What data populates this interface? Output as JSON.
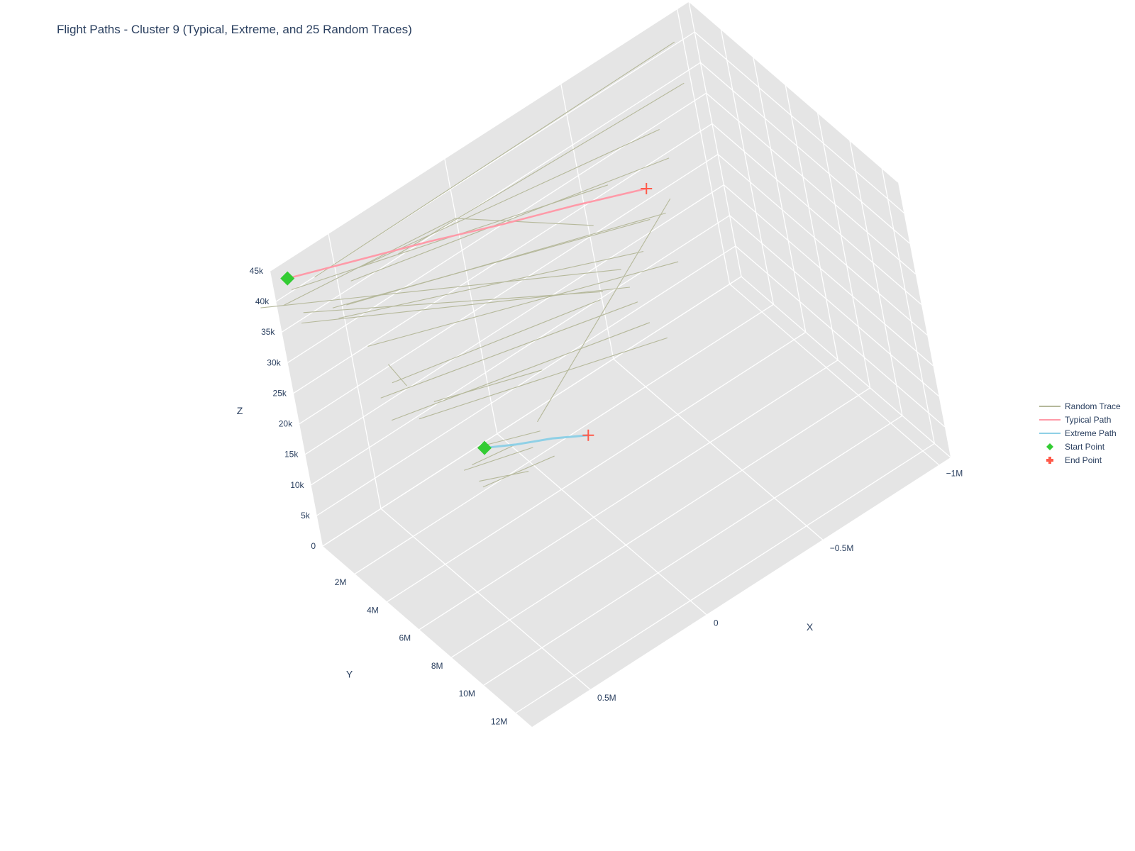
{
  "chart_data": {
    "type": "line3d",
    "title": "Flight Paths - Cluster 9 (Typical, Extreme, and 25 Random Traces)",
    "axes": {
      "x": {
        "title": "X",
        "range": [
          -1.05,
          0.75
        ],
        "ticks": [
          -1,
          -0.5,
          0,
          0.5
        ],
        "tick_labels": [
          "−1M",
          "−0.5M",
          "0",
          "0.5M"
        ]
      },
      "y": {
        "title": "Y",
        "range": [
          0,
          13
        ],
        "ticks": [
          0,
          2,
          4,
          6,
          8,
          10,
          12
        ],
        "tick_labels": [
          "0",
          "2M",
          "4M",
          "6M",
          "8M",
          "10M",
          "12M"
        ]
      },
      "z": {
        "title": "Z",
        "range": [
          0,
          45000
        ],
        "ticks": [
          0,
          5000,
          10000,
          15000,
          20000,
          25000,
          30000,
          35000,
          40000,
          45000
        ],
        "tick_labels": [
          "0",
          "5k",
          "10k",
          "15k",
          "20k",
          "25k",
          "30k",
          "35k",
          "40k",
          "45k"
        ]
      }
    },
    "grid": true,
    "legend_position": "right",
    "colors": {
      "random": "#b5b89a",
      "typical": "#ff9aa8",
      "extreme": "#8fd0e6",
      "start": "#33cc33",
      "end": "#ff5a4a",
      "pane": "#e5e5e5",
      "gridline": "#ffffff"
    },
    "legend": [
      {
        "name": "Random Trace",
        "kind": "line",
        "color": "#b5b89a"
      },
      {
        "name": "Typical Path",
        "kind": "line",
        "color": "#ff9aa8"
      },
      {
        "name": "Extreme Path",
        "kind": "line",
        "color": "#8fd0e6"
      },
      {
        "name": "Start Point",
        "kind": "diamond",
        "color": "#33cc33"
      },
      {
        "name": "End Point",
        "kind": "cross",
        "color": "#ff5a4a"
      }
    ],
    "typical_path": [
      [
        0.7,
        0.2,
        43000
      ],
      [
        0.45,
        0.9,
        41500
      ],
      [
        0.2,
        1.6,
        40000
      ],
      [
        -0.05,
        2.4,
        38500
      ],
      [
        -0.3,
        3.1,
        37000
      ],
      [
        -0.55,
        3.9,
        35500
      ]
    ],
    "extreme_path": [
      [
        0.45,
        7.6,
        26000
      ],
      [
        0.35,
        8.0,
        25000
      ],
      [
        0.22,
        8.3,
        23500
      ],
      [
        0.1,
        8.7,
        22000
      ]
    ],
    "start_points": [
      [
        0.7,
        0.2,
        43000
      ],
      [
        0.45,
        7.6,
        26000
      ]
    ],
    "end_points": [
      [
        -0.55,
        3.9,
        35500
      ],
      [
        0.1,
        8.7,
        22000
      ]
    ],
    "random_traces": [
      [
        [
          0.85,
          0.7,
          43000
        ],
        [
          -0.25,
          6.7,
          36000
        ]
      ],
      [
        [
          0.7,
          0.35,
          41500
        ],
        [
          -0.4,
          4.0,
          40000
        ]
      ],
      [
        [
          0.75,
          0.5,
          40500
        ],
        [
          0.1,
          1.9,
          42000
        ],
        [
          -0.3,
          4.3,
          36500
        ]
      ],
      [
        [
          0.7,
          0.9,
          39000
        ],
        [
          -0.2,
          6.0,
          32000
        ]
      ],
      [
        [
          0.72,
          1.0,
          38000
        ],
        [
          -0.25,
          7.1,
          34000
        ]
      ],
      [
        [
          0.6,
          0.3,
          41000
        ],
        [
          -0.95,
          0.3,
          41500
        ]
      ],
      [
        [
          0.45,
          0.8,
          40000
        ],
        [
          -0.7,
          2.8,
          39000
        ]
      ],
      [
        [
          0.5,
          1.0,
          39500
        ],
        [
          -0.7,
          3.1,
          35000
        ]
      ],
      [
        [
          0.3,
          1.0,
          39000
        ],
        [
          -0.9,
          1.4,
          38500
        ]
      ],
      [
        [
          0.55,
          1.3,
          37500
        ],
        [
          -0.55,
          5.0,
          34000
        ]
      ],
      [
        [
          0.6,
          1.5,
          37000
        ],
        [
          -0.4,
          5.7,
          33000
        ]
      ],
      [
        [
          0.6,
          1.2,
          38000
        ],
        [
          -0.5,
          4.7,
          33500
        ]
      ],
      [
        [
          0.1,
          5.1,
          16000
        ],
        [
          -0.5,
          6.5,
          41000
        ]
      ],
      [
        [
          0.55,
          3.6,
          30000
        ],
        [
          -0.2,
          5.7,
          30000
        ]
      ],
      [
        [
          0.6,
          4.0,
          26000
        ],
        [
          -0.3,
          7.1,
          27000
        ]
      ],
      [
        [
          0.6,
          3.5,
          28500
        ],
        [
          -0.3,
          6.5,
          29000
        ]
      ],
      [
        [
          0.55,
          5.1,
          27500
        ],
        [
          -0.3,
          8.2,
          27000
        ]
      ],
      [
        [
          0.45,
          4.5,
          26500
        ],
        [
          0.1,
          6.2,
          27000
        ]
      ],
      [
        [
          0.5,
          7.7,
          22000
        ],
        [
          0.35,
          8.6,
          22000
        ]
      ],
      [
        [
          0.5,
          7.4,
          24000
        ],
        [
          0.35,
          8.0,
          25000
        ]
      ],
      [
        [
          0.55,
          7.7,
          25000
        ],
        [
          0.3,
          8.3,
          24000
        ]
      ],
      [
        [
          0.45,
          7.1,
          25000
        ],
        [
          0.25,
          8.1,
          25000
        ]
      ],
      [
        [
          0.5,
          7.9,
          21500
        ],
        [
          0.25,
          8.8,
          22500
        ]
      ],
      [
        [
          0.5,
          2.6,
          29500
        ],
        [
          0.45,
          2.7,
          25000
        ]
      ],
      [
        [
          0.55,
          2.3,
          33000
        ],
        [
          -0.5,
          6.2,
          30000
        ]
      ]
    ]
  }
}
